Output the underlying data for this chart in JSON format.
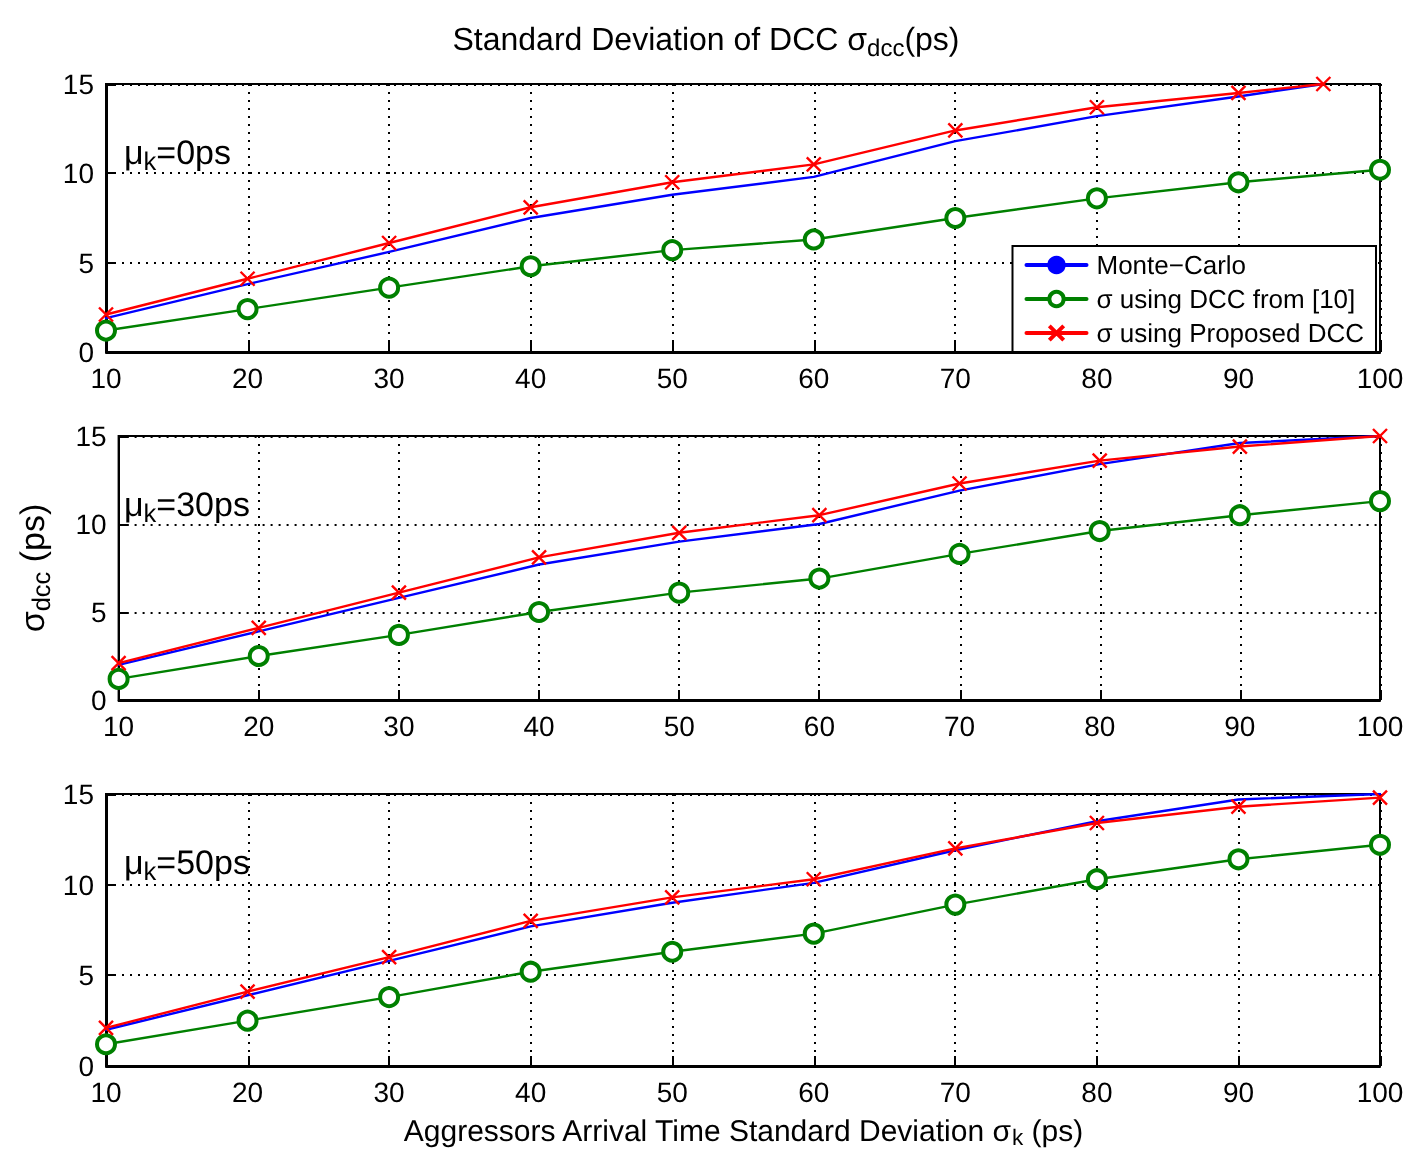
{
  "chart_data": [
    {
      "type": "line",
      "title": "Standard Deviation of DCC σ$_{dcc}$(ps)",
      "annotations": [
        "μ$_{k}$=0ps"
      ],
      "xlim": [
        10,
        100
      ],
      "xticks": [
        10,
        20,
        30,
        40,
        50,
        60,
        70,
        80,
        90,
        100
      ],
      "ylim": [
        0,
        15
      ],
      "yticks": [
        0,
        5,
        10,
        15
      ],
      "grid": true,
      "legend": "bottom right",
      "series": [
        {
          "name": "Monte−Carlo",
          "color": "#0000ff",
          "marker": "none",
          "x": [
            10,
            20,
            30,
            40,
            50,
            60,
            70,
            80,
            90,
            96
          ],
          "values": [
            1.9,
            3.8,
            5.6,
            7.5,
            8.8,
            9.8,
            11.8,
            13.2,
            14.3,
            15
          ]
        },
        {
          "name": "σ using DCC from [10]",
          "color": "#008000",
          "marker": "circle",
          "x": [
            10,
            20,
            30,
            40,
            50,
            60,
            70,
            80,
            90,
            100
          ],
          "values": [
            1.2,
            2.4,
            3.6,
            4.8,
            5.7,
            6.3,
            7.5,
            8.6,
            9.5,
            10.2
          ]
        },
        {
          "name": "σ using Proposed DCC",
          "color": "#ff0000",
          "marker": "cross",
          "x": [
            10,
            20,
            30,
            40,
            50,
            60,
            70,
            80,
            90,
            96
          ],
          "values": [
            2.1,
            4.1,
            6.1,
            8.1,
            9.5,
            10.5,
            12.4,
            13.7,
            14.5,
            15
          ]
        }
      ]
    },
    {
      "type": "line",
      "ylabel": "σ$_{dcc}$ (ps)",
      "annotations": [
        "μ$_{k}$=30ps"
      ],
      "xlim": [
        10,
        100
      ],
      "xticks": [
        10,
        20,
        30,
        40,
        50,
        60,
        70,
        80,
        90,
        100
      ],
      "ylim": [
        0,
        15
      ],
      "yticks": [
        0,
        5,
        10,
        15
      ],
      "grid": true,
      "series": [
        {
          "color": "#0000ff",
          "marker": "none",
          "x": [
            10,
            20,
            30,
            40,
            50,
            60,
            70,
            80,
            90,
            100
          ],
          "values": [
            2.0,
            3.9,
            5.8,
            7.7,
            9.0,
            10.0,
            11.9,
            13.4,
            14.6,
            15
          ]
        },
        {
          "color": "#008000",
          "marker": "circle",
          "x": [
            10,
            20,
            30,
            40,
            50,
            60,
            70,
            80,
            90,
            100
          ],
          "values": [
            1.2,
            2.5,
            3.7,
            5.0,
            6.1,
            6.9,
            8.3,
            9.6,
            10.5,
            11.3
          ]
        },
        {
          "color": "#ff0000",
          "marker": "cross",
          "x": [
            10,
            20,
            30,
            40,
            50,
            60,
            70,
            80,
            90,
            100
          ],
          "values": [
            2.1,
            4.1,
            6.1,
            8.1,
            9.5,
            10.5,
            12.3,
            13.6,
            14.4,
            15
          ]
        }
      ]
    },
    {
      "type": "line",
      "xlabel": "Aggressors Arrival Time Standard Deviation σ$_{k}$ (ps)",
      "annotations": [
        "μ$_{k}$=50ps"
      ],
      "xlim": [
        10,
        100
      ],
      "xticks": [
        10,
        20,
        30,
        40,
        50,
        60,
        70,
        80,
        90,
        100
      ],
      "ylim": [
        0,
        15
      ],
      "yticks": [
        0,
        5,
        10,
        15
      ],
      "grid": true,
      "series": [
        {
          "color": "#0000ff",
          "marker": "none",
          "x": [
            10,
            20,
            30,
            40,
            50,
            60,
            70,
            80,
            90,
            100
          ],
          "values": [
            2.0,
            3.9,
            5.8,
            7.7,
            9.0,
            10.1,
            11.9,
            13.5,
            14.7,
            15
          ]
        },
        {
          "color": "#008000",
          "marker": "circle",
          "x": [
            10,
            20,
            30,
            40,
            50,
            60,
            70,
            80,
            90,
            100
          ],
          "values": [
            1.2,
            2.5,
            3.8,
            5.2,
            6.3,
            7.3,
            8.9,
            10.3,
            11.4,
            12.2
          ]
        },
        {
          "color": "#ff0000",
          "marker": "cross",
          "x": [
            10,
            20,
            30,
            40,
            50,
            60,
            70,
            80,
            90,
            100
          ],
          "values": [
            2.1,
            4.1,
            6.0,
            8.0,
            9.3,
            10.3,
            12.0,
            13.4,
            14.3,
            14.8
          ]
        }
      ]
    }
  ]
}
